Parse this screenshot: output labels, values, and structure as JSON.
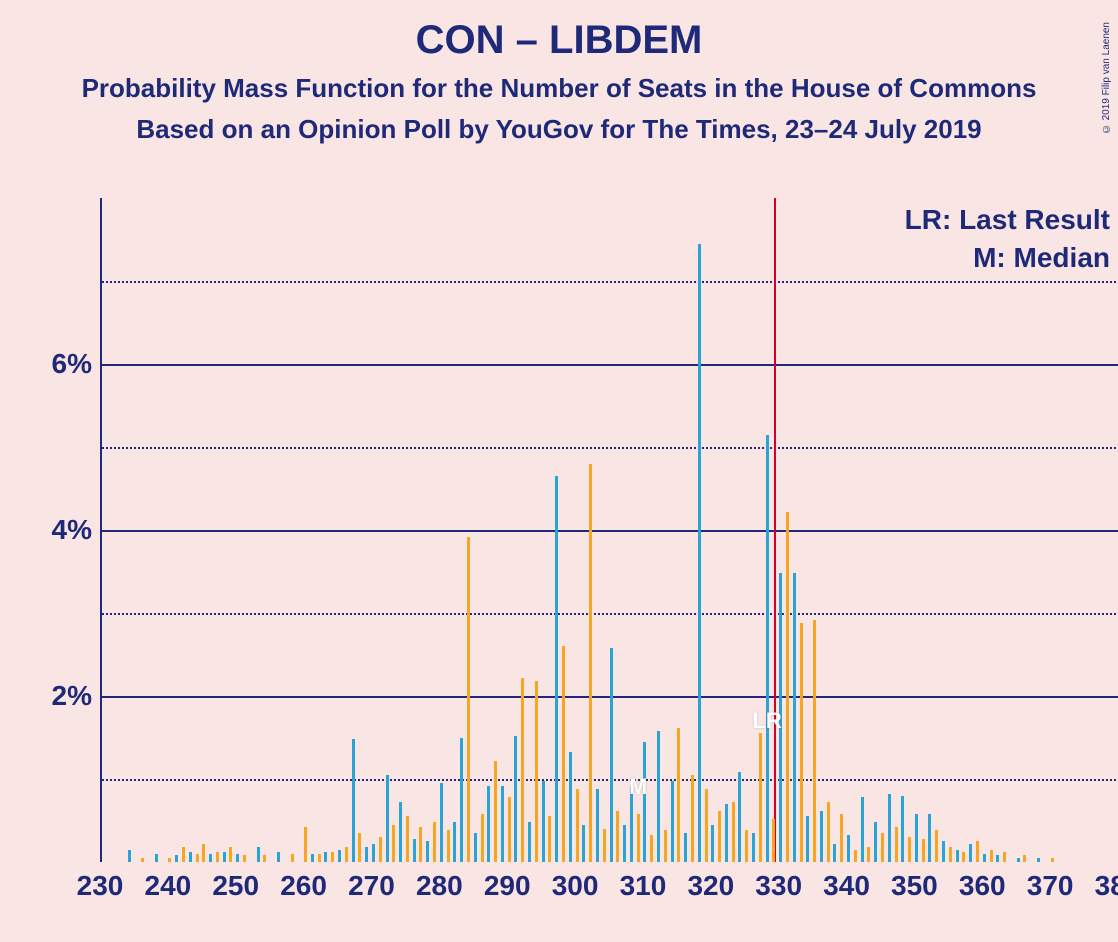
{
  "title": "CON – LIBDEM",
  "subtitle1": "Probability Mass Function for the Number of Seats in the House of Commons",
  "subtitle2": "Based on an Opinion Poll by YouGov for The Times, 23–24 July 2019",
  "copyright": "© 2019 Filip van Laenen",
  "legend": {
    "lr": "LR: Last Result",
    "m": "M: Median"
  },
  "colors": {
    "background": "#fae5e5",
    "text": "#1e2a78",
    "grid": "#1e2a78",
    "series_a": "#2aa4d4",
    "series_b": "#f5a623",
    "last_result_line": "#d4002a"
  },
  "axes": {
    "x_min": 230,
    "x_max": 380,
    "x_step": 10,
    "y_min": 0,
    "y_max": 8,
    "y_major_step": 2,
    "y_minor_step": 1,
    "y_tick_format": "%"
  },
  "markers": {
    "last_result_x": 329,
    "median_x": 309,
    "lr_label": "LR",
    "m_label": "M"
  },
  "series": [
    {
      "name": "A",
      "color": "#2aa4d4",
      "points": [
        [
          234,
          0.15
        ],
        [
          238,
          0.1
        ],
        [
          241,
          0.08
        ],
        [
          243,
          0.12
        ],
        [
          246,
          0.1
        ],
        [
          248,
          0.12
        ],
        [
          250,
          0.1
        ],
        [
          253,
          0.18
        ],
        [
          256,
          0.12
        ],
        [
          261,
          0.1
        ],
        [
          263,
          0.12
        ],
        [
          265,
          0.15
        ],
        [
          267,
          1.48
        ],
        [
          269,
          0.18
        ],
        [
          270,
          0.22
        ],
        [
          272,
          1.05
        ],
        [
          274,
          0.72
        ],
        [
          276,
          0.28
        ],
        [
          278,
          0.25
        ],
        [
          280,
          0.95
        ],
        [
          282,
          0.48
        ],
        [
          283,
          1.5
        ],
        [
          285,
          0.35
        ],
        [
          287,
          0.92
        ],
        [
          289,
          0.92
        ],
        [
          291,
          1.52
        ],
        [
          293,
          0.48
        ],
        [
          295,
          0.98
        ],
        [
          297,
          4.65
        ],
        [
          299,
          1.32
        ],
        [
          301,
          0.45
        ],
        [
          303,
          0.88
        ],
        [
          305,
          2.58
        ],
        [
          307,
          0.45
        ],
        [
          308,
          0.92
        ],
        [
          310,
          1.45
        ],
        [
          312,
          1.58
        ],
        [
          314,
          0.98
        ],
        [
          316,
          0.35
        ],
        [
          318,
          7.45
        ],
        [
          320,
          0.45
        ],
        [
          322,
          0.7
        ],
        [
          324,
          1.08
        ],
        [
          326,
          0.35
        ],
        [
          328,
          5.15
        ],
        [
          330,
          3.48
        ],
        [
          332,
          3.48
        ],
        [
          334,
          0.55
        ],
        [
          336,
          0.62
        ],
        [
          338,
          0.22
        ],
        [
          340,
          0.32
        ],
        [
          342,
          0.78
        ],
        [
          344,
          0.48
        ],
        [
          346,
          0.82
        ],
        [
          348,
          0.8
        ],
        [
          350,
          0.58
        ],
        [
          352,
          0.58
        ],
        [
          354,
          0.25
        ],
        [
          356,
          0.15
        ],
        [
          358,
          0.22
        ],
        [
          360,
          0.1
        ],
        [
          362,
          0.08
        ],
        [
          365,
          0.05
        ],
        [
          368,
          0.05
        ]
      ]
    },
    {
      "name": "B",
      "color": "#f5a623",
      "points": [
        [
          236,
          0.05
        ],
        [
          240,
          0.05
        ],
        [
          242,
          0.18
        ],
        [
          244,
          0.1
        ],
        [
          245,
          0.22
        ],
        [
          247,
          0.12
        ],
        [
          249,
          0.18
        ],
        [
          251,
          0.08
        ],
        [
          254,
          0.08
        ],
        [
          258,
          0.1
        ],
        [
          260,
          0.42
        ],
        [
          262,
          0.1
        ],
        [
          264,
          0.12
        ],
        [
          266,
          0.18
        ],
        [
          268,
          0.35
        ],
        [
          271,
          0.3
        ],
        [
          273,
          0.45
        ],
        [
          275,
          0.55
        ],
        [
          277,
          0.42
        ],
        [
          279,
          0.48
        ],
        [
          281,
          0.38
        ],
        [
          284,
          3.92
        ],
        [
          286,
          0.58
        ],
        [
          288,
          1.22
        ],
        [
          290,
          0.78
        ],
        [
          292,
          2.22
        ],
        [
          294,
          2.18
        ],
        [
          296,
          0.55
        ],
        [
          298,
          2.6
        ],
        [
          300,
          0.88
        ],
        [
          302,
          4.8
        ],
        [
          304,
          0.4
        ],
        [
          306,
          0.62
        ],
        [
          309,
          0.58
        ],
        [
          311,
          0.32
        ],
        [
          313,
          0.38
        ],
        [
          315,
          1.62
        ],
        [
          317,
          1.05
        ],
        [
          319,
          0.88
        ],
        [
          321,
          0.62
        ],
        [
          323,
          0.72
        ],
        [
          325,
          0.38
        ],
        [
          327,
          1.55
        ],
        [
          329,
          0.52
        ],
        [
          331,
          4.22
        ],
        [
          333,
          2.88
        ],
        [
          335,
          2.92
        ],
        [
          337,
          0.72
        ],
        [
          339,
          0.58
        ],
        [
          341,
          0.15
        ],
        [
          343,
          0.18
        ],
        [
          345,
          0.35
        ],
        [
          347,
          0.42
        ],
        [
          349,
          0.3
        ],
        [
          351,
          0.28
        ],
        [
          353,
          0.38
        ],
        [
          355,
          0.18
        ],
        [
          357,
          0.12
        ],
        [
          359,
          0.25
        ],
        [
          361,
          0.15
        ],
        [
          363,
          0.12
        ],
        [
          366,
          0.08
        ],
        [
          370,
          0.05
        ]
      ]
    }
  ]
}
